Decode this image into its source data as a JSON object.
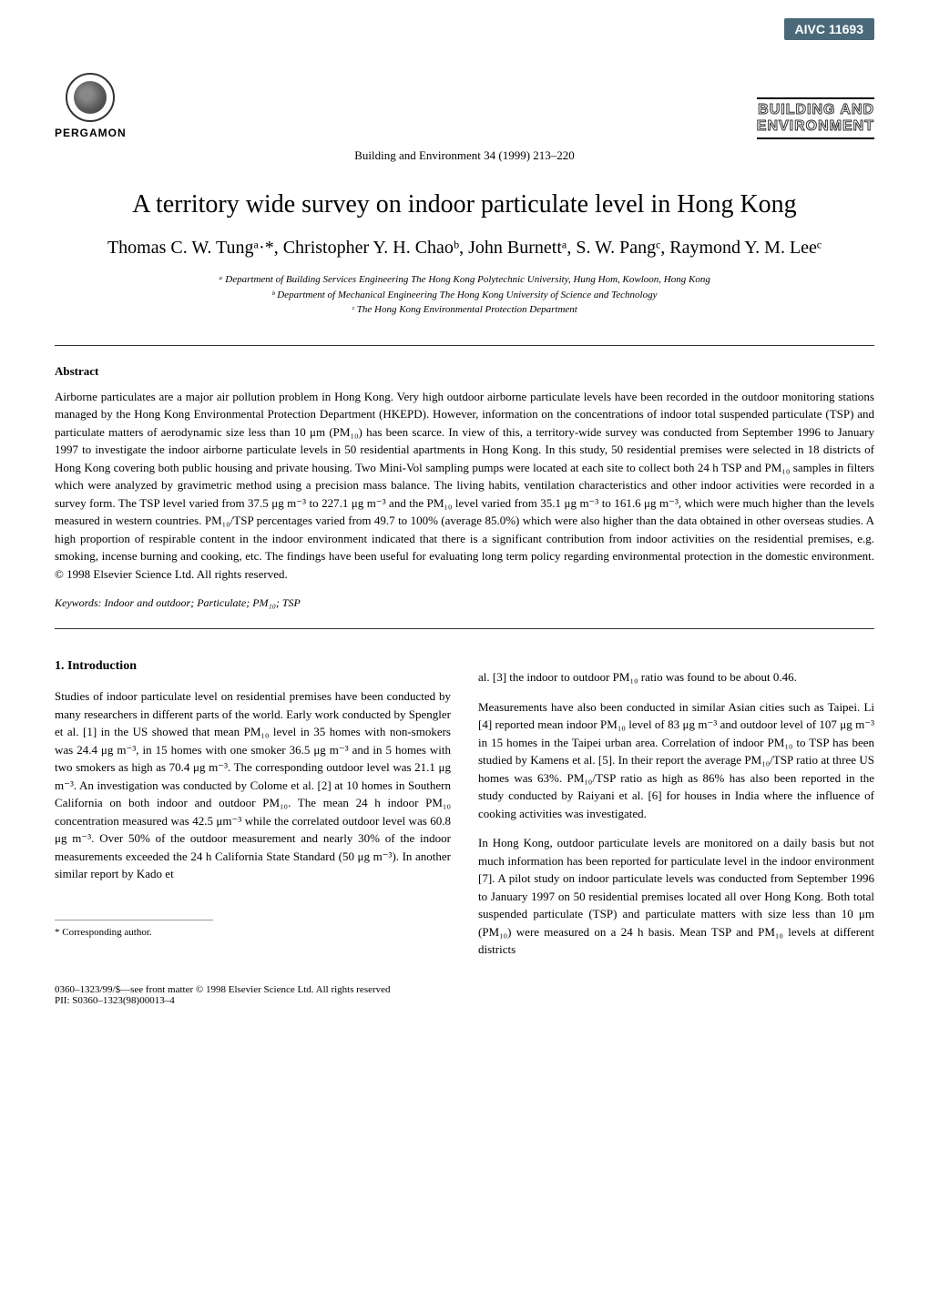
{
  "header": {
    "badge": "AIVC 11693",
    "publisher": "PERGAMON",
    "journal_line1": "BUILDING AND",
    "journal_line2": "ENVIRONMENT",
    "journal_ref": "Building and Environment 34 (1999) 213–220"
  },
  "title": "A territory wide survey on indoor particulate level in Hong Kong",
  "authors": "Thomas C. W. Tungᵃ·*, Christopher Y. H. Chaoᵇ, John Burnettᵃ, S. W. Pangᶜ, Raymond Y. M. Leeᶜ",
  "affiliations": {
    "a": "ᵃ Department of Building Services Engineering The Hong Kong Polytechnic University, Hung Hom, Kowloon, Hong Kong",
    "b": "ᵇ Department of Mechanical Engineering The Hong Kong University of Science and Technology",
    "c": "ᶜ The Hong Kong Environmental Protection Department"
  },
  "abstract": {
    "heading": "Abstract",
    "body": "Airborne particulates are a major air pollution problem in Hong Kong. Very high outdoor airborne particulate levels have been recorded in the outdoor monitoring stations managed by the Hong Kong Environmental Protection Department (HKEPD). However, information on the concentrations of indoor total suspended particulate (TSP) and particulate matters of aerodynamic size less than 10 μm (PM₁₀) has been scarce. In view of this, a territory-wide survey was conducted from September 1996 to January 1997 to investigate the indoor airborne particulate levels in 50 residential apartments in Hong Kong. In this study, 50 residential premises were selected in 18 districts of Hong Kong covering both public housing and private housing. Two Mini-Vol sampling pumps were located at each site to collect both 24 h TSP and PM₁₀ samples in filters which were analyzed by gravimetric method using a precision mass balance. The living habits, ventilation characteristics and other indoor activities were recorded in a survey form. The TSP level varied from 37.5 μg m⁻³ to 227.1 μg m⁻³ and the PM₁₀ level varied from 35.1 μg m⁻³ to 161.6 μg m⁻³, which were much higher than the levels measured in western countries. PM₁₀/TSP percentages varied from 49.7 to 100% (average 85.0%) which were also higher than the data obtained in other overseas studies. A high proportion of respirable content in the indoor environment indicated that there is a significant contribution from indoor activities on the residential premises, e.g. smoking, incense burning and cooking, etc. The findings have been useful for evaluating long term policy regarding environmental protection in the domestic environment. © 1998 Elsevier Science Ltd. All rights reserved."
  },
  "keywords": "Keywords: Indoor and outdoor; Particulate; PM₁₀; TSP",
  "intro": {
    "heading": "1. Introduction",
    "col1_p1": "Studies of indoor particulate level on residential premises have been conducted by many researchers in different parts of the world. Early work conducted by Spengler et al. [1] in the US showed that mean PM₁₀ level in 35 homes with non-smokers was 24.4 μg m⁻³, in 15 homes with one smoker 36.5 μg m⁻³ and in 5 homes with two smokers as high as 70.4 μg m⁻³. The corresponding outdoor level was 21.1 μg m⁻³. An investigation was conducted by Colome et al. [2] at 10 homes in Southern California on both indoor and outdoor PM₁₀. The mean 24 h indoor PM₁₀ concentration measured was 42.5 μm⁻³ while the correlated outdoor level was 60.8 μg m⁻³. Over 50% of the outdoor measurement and nearly 30% of the indoor measurements exceeded the 24 h California State Standard (50 μg m⁻³). In another similar report by Kado et",
    "col2_p1": "al. [3] the indoor to outdoor PM₁₀ ratio was found to be about 0.46.",
    "col2_p2": "Measurements have also been conducted in similar Asian cities such as Taipei. Li [4] reported mean indoor PM₁₀ level of 83 μg m⁻³ and outdoor level of 107 μg m⁻³ in 15 homes in the Taipei urban area. Correlation of indoor PM₁₀ to TSP has been studied by Kamens et al. [5]. In their report the average PM₁₀/TSP ratio at three US homes was 63%. PM₁₀/TSP ratio as high as 86% has also been reported in the study conducted by Raiyani et al. [6] for houses in India where the influence of cooking activities was investigated.",
    "col2_p3": "In Hong Kong, outdoor particulate levels are monitored on a daily basis but not much information has been reported for particulate level in the indoor environment [7]. A pilot study on indoor particulate levels was conducted from September 1996 to January 1997 on 50 residential premises located all over Hong Kong. Both total suspended particulate (TSP) and particulate matters with size less than 10 μm (PM₁₀) were measured on a 24 h basis. Mean TSP and PM₁₀ levels at different districts"
  },
  "footnote": "* Corresponding author.",
  "footer": {
    "line1": "0360–1323/99/$—see front matter © 1998 Elsevier Science Ltd. All rights reserved",
    "line2": "PII: S0360–1323(98)00013–4"
  }
}
